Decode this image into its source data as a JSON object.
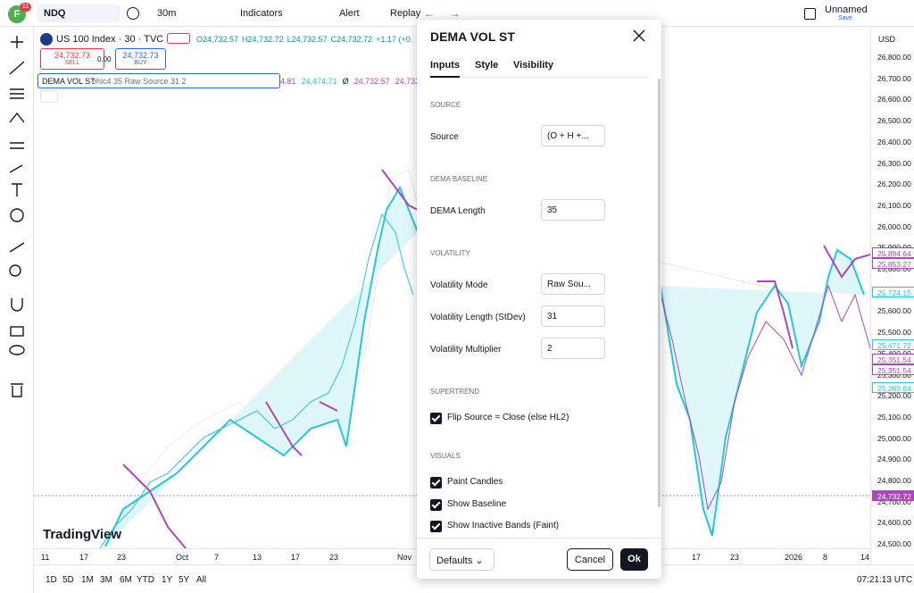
{
  "top_bar": {
    "avatar": "F",
    "badge": "11",
    "symbol": "NDQ",
    "interval": "30m",
    "indicators": "Indicators",
    "alert": "Alert",
    "replay": "Replay",
    "layout_name": "Unnamed",
    "layout_status": "Save"
  },
  "legend": {
    "title": "US 100 Index · 30 · TVC",
    "ohlc": [
      "O24,732.57",
      "H24,732.72",
      "L24,732.57",
      "C24,732.72",
      "+1.17 (+0."
    ],
    "sell_price": "24,732.73",
    "sell": "SELL",
    "spread": "0.00",
    "buy_price": "24,732.73",
    "buy": "BUY",
    "indicator_name": "DEMA VOL ST",
    "indicator_args": "ohlc4 35 Raw Source 31 2",
    "indicator_values": [
      "4.81",
      "24,474.71",
      "Ø",
      "24,732.57",
      "24,732."
    ]
  },
  "price_axis": {
    "currency": "USD",
    "ticks": [
      "26,800.00",
      "26,700.00",
      "26,600.00",
      "26,500.00",
      "26,400.00",
      "26,300.00",
      "26,200.00",
      "26,100.00",
      "26,000.00",
      "25,900.00",
      "25,800.00",
      "25,700.00",
      "25,600.00",
      "25,500.00",
      "25,400.00",
      "25,300.00",
      "25,200.00",
      "25,100.00",
      "25,000.00",
      "24,900.00",
      "24,800.00",
      "24,700.00",
      "24,600.00",
      "24,500.00"
    ],
    "price_labels": [
      "25,894.64",
      "25,853.27",
      "25,724.15",
      "25,471.72",
      "25,351.54",
      "25,351.54",
      "25,269.84",
      "24,732.72"
    ]
  },
  "time_axis": [
    "11",
    "17",
    "23",
    "Oct",
    "7",
    "13",
    "17",
    "23",
    "Nov",
    "17",
    "23",
    "2026",
    "8",
    "14"
  ],
  "watermark": "TradingView",
  "bottom_bar": {
    "periods": [
      "1D",
      "5D",
      "1M",
      "3M",
      "6M",
      "YTD",
      "1Y",
      "5Y",
      "All"
    ],
    "clock": "07:21:13 UTC"
  },
  "dialog": {
    "title": "DEMA VOL ST",
    "tabs": [
      "Inputs",
      "Style",
      "Visibility"
    ],
    "sections": [
      {
        "heading": "SOURCE",
        "fields": [
          {
            "label": "Source",
            "value": "(O + H +..."
          }
        ]
      },
      {
        "heading": "DEMA BASELINE",
        "fields": [
          {
            "label": "DEMA Length",
            "value": "35"
          }
        ]
      },
      {
        "heading": "VOLATILITY",
        "fields": [
          {
            "label": "Volatility Mode",
            "value": "Raw Sou..."
          },
          {
            "label": "Volatility Length (StDev)",
            "value": "31"
          },
          {
            "label": "Volatility Multiplier",
            "value": "2"
          }
        ]
      },
      {
        "heading": "SUPERTREND",
        "checks": [
          "Flip Source = Close (else HL2)"
        ]
      },
      {
        "heading": "VISUALS",
        "checks": [
          "Paint Candles",
          "Show Baseline",
          "Show Inactive Bands (Faint)"
        ]
      }
    ],
    "defaults": "Defaults",
    "cancel": "Cancel",
    "ok": "Ok"
  }
}
